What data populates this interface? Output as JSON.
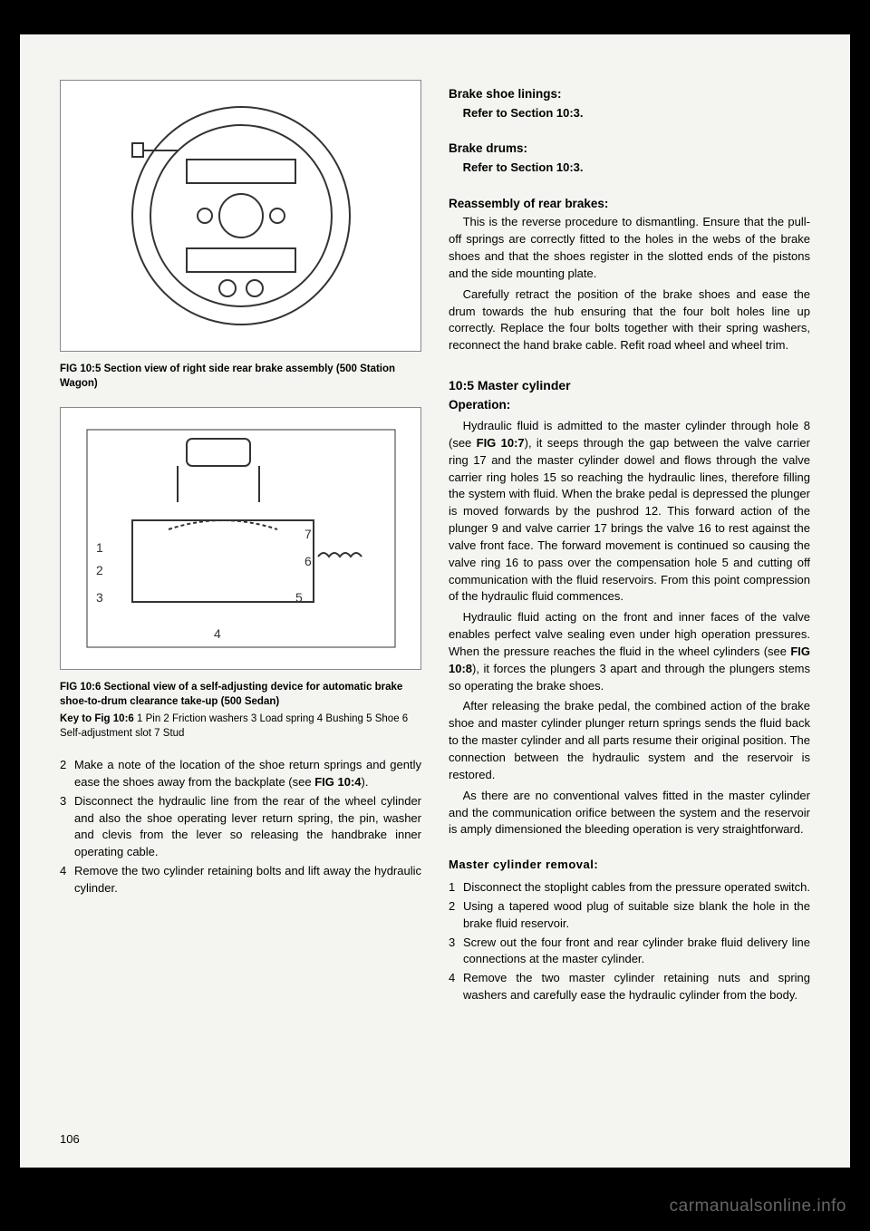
{
  "left": {
    "fig1_caption": "FIG 10:5   Section view of right side rear brake assembly (500 Station Wagon)",
    "fig2_caption": "FIG 10:6   Sectional view of a self-adjusting device for automatic brake shoe-to-drum clearance take-up (500 Sedan)",
    "key_label": "Key to Fig 10:6",
    "key_text": "   1  Pin   2  Friction washers   3  Load spring   4  Bushing      5  Shoe      6  Self-adjustment slot      7  Stud",
    "steps": [
      {
        "n": "2",
        "t": "Make a note of the location of the shoe return springs and gently ease the shoes away from the backplate (see <b>FIG 10:4</b>)."
      },
      {
        "n": "3",
        "t": "Disconnect the hydraulic line from the rear of the wheel cylinder and also the shoe operating lever return spring, the pin, washer and clevis from the lever so releasing the handbrake inner operating cable."
      },
      {
        "n": "4",
        "t": "Remove the two cylinder retaining bolts and lift away the hydraulic cylinder."
      }
    ]
  },
  "right": {
    "h_shoe": "Brake shoe linings:",
    "h_shoe_ref": "Refer to Section 10:3.",
    "h_drums": "Brake drums:",
    "h_drums_ref": "Refer to Section 10:3.",
    "h_reasm": "Reassembly of rear brakes:",
    "reasm_p1": "This is the reverse procedure to dismantling. Ensure that the pull-off springs are correctly fitted to the holes in the webs of the brake shoes and that the shoes register in the slotted ends of the pistons and the side mounting plate.",
    "reasm_p2": "Carefully retract the position of the brake shoes and ease the drum towards the hub ensuring that the four bolt holes line up correctly. Replace the four bolts together with their spring washers, reconnect the hand brake cable. Refit road wheel and wheel trim.",
    "sec_num": "10:5  Master cylinder",
    "op_head": "Operation:",
    "op_p1": "Hydraulic fluid is admitted to the master cylinder through hole 8 (see <b>FIG 10:7</b>), it seeps through the gap between the valve carrier ring 17 and the master cylinder dowel and flows through the valve carrier ring holes 15 so reaching the hydraulic lines, therefore filling the system with fluid. When the brake pedal is depressed the plunger is moved forwards by the pushrod 12. This forward action of the plunger 9 and valve carrier 17 brings the valve 16 to rest against the valve front face. The forward movement is continued so causing the valve ring 16 to pass over the compensation hole 5 and cutting off communication with the fluid reservoirs. From this point compression of the hydraulic fluid commences.",
    "op_p2": "Hydraulic fluid acting on the front and inner faces of the valve enables perfect valve sealing even under high operation pressures. When the pressure reaches the fluid in the wheel cylinders (see <b>FIG 10:8</b>), it forces the plungers 3 apart and through the plungers stems so operating the brake shoes.",
    "op_p3": "After releasing the brake pedal, the combined action of the brake shoe and master cylinder plunger return springs sends the fluid back to the master cylinder and all parts resume their original position. The connection between the hydraulic system and the reservoir is restored.",
    "op_p4": "As there are no conventional valves fitted in the master cylinder and the communication orifice between the system and the reservoir is amply dimensioned the bleeding operation is very straightforward.",
    "mc_head": "Master cylinder removal:",
    "mc_steps": [
      {
        "n": "1",
        "t": "Disconnect the stoplight cables from the pressure operated switch."
      },
      {
        "n": "2",
        "t": "Using a tapered wood plug of suitable size blank the hole in the brake fluid reservoir."
      },
      {
        "n": "3",
        "t": "Screw out the four front and rear cylinder brake fluid delivery line connections at the master cylinder."
      },
      {
        "n": "4",
        "t": "Remove the two master cylinder retaining nuts and spring washers and carefully ease the hydraulic cylinder from the body."
      }
    ]
  },
  "page_number": "106",
  "watermark": "carmanualsonline.info"
}
